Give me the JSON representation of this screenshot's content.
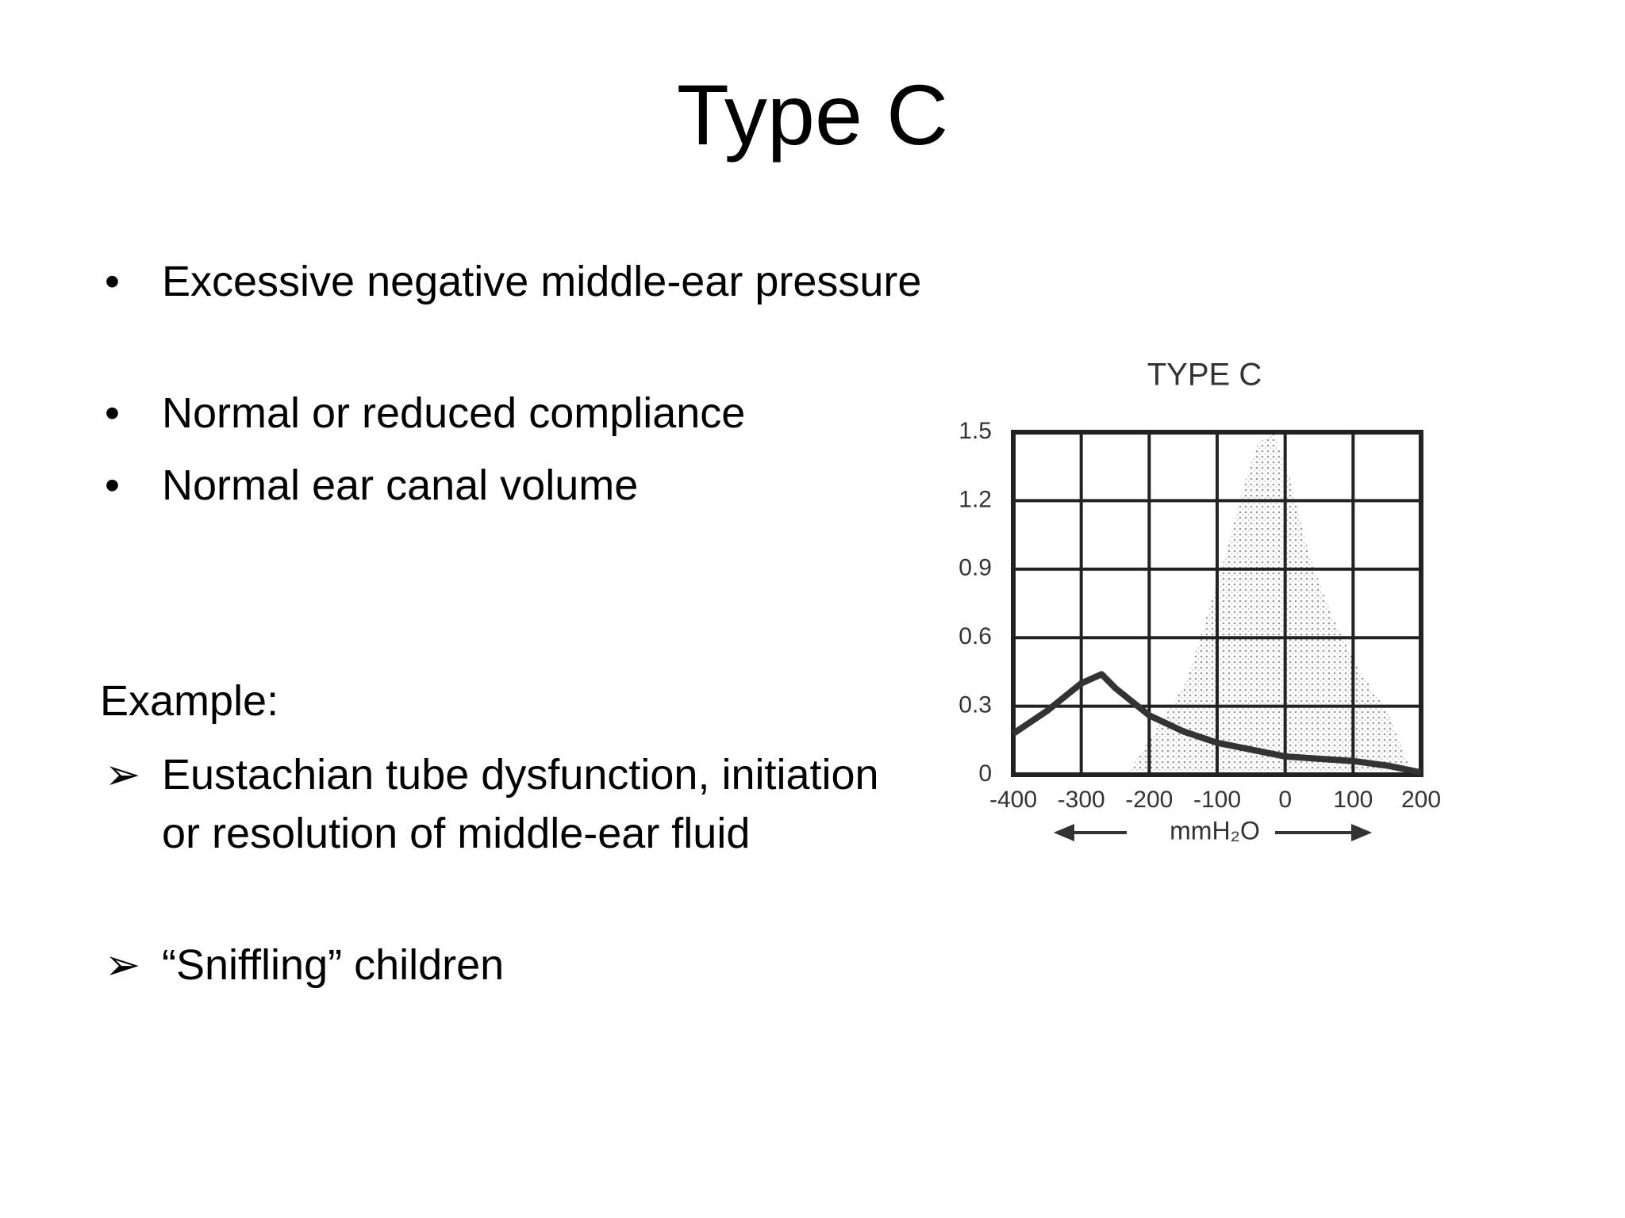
{
  "title": "Type C",
  "bullets": [
    "Excessive negative middle-ear pressure",
    "Normal or reduced compliance",
    "Normal ear canal volume"
  ],
  "example_label": "Example:",
  "examples": [
    "Eustachian tube dysfunction, initiation or resolution of middle-ear fluid",
    "“Sniffling” children"
  ],
  "chart_data": {
    "type": "line",
    "title": "TYPE C",
    "x_label": "mmH₂O",
    "x": [
      -400,
      -350,
      -300,
      -270,
      -250,
      -200,
      -150,
      -100,
      -50,
      0,
      50,
      100,
      150,
      200
    ],
    "values": [
      0.18,
      0.28,
      0.4,
      0.44,
      0.38,
      0.26,
      0.19,
      0.14,
      0.11,
      0.08,
      0.07,
      0.06,
      0.04,
      0.01
    ],
    "color": "#333333",
    "xlim": [
      -400,
      200
    ],
    "xticks": [
      -400,
      -300,
      -200,
      -100,
      0,
      100,
      200
    ],
    "ylim": [
      0,
      1.5
    ],
    "yticks": [
      0,
      0.3,
      0.6,
      0.9,
      1.2,
      1.5
    ],
    "grid": true
  }
}
